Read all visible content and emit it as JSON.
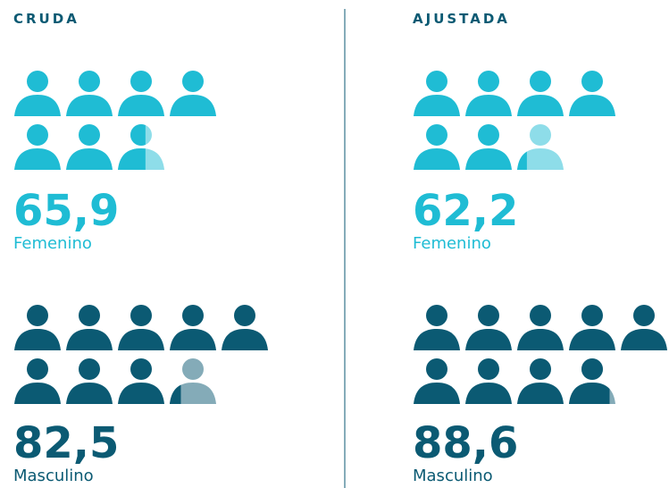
{
  "chart_data": [
    {
      "type": "pictogram",
      "title": "CRUDA",
      "unit": 10,
      "series": [
        {
          "name": "Femenino",
          "color": "#1fbcd4",
          "values": [
            65.9
          ],
          "value_labels": [
            "65,9"
          ]
        },
        {
          "name": "Masculino",
          "color": "#0b5a73",
          "values": [
            82.5
          ],
          "value_labels": [
            "82,5"
          ]
        }
      ]
    },
    {
      "type": "pictogram",
      "title": "AJUSTADA",
      "unit": 10,
      "series": [
        {
          "name": "Femenino",
          "color": "#1fbcd4",
          "values": [
            62.2
          ],
          "value_labels": [
            "62,2"
          ]
        },
        {
          "name": "Masculino",
          "color": "#0b5a73",
          "values": [
            88.6
          ],
          "value_labels": [
            "88,6"
          ]
        }
      ]
    }
  ]
}
